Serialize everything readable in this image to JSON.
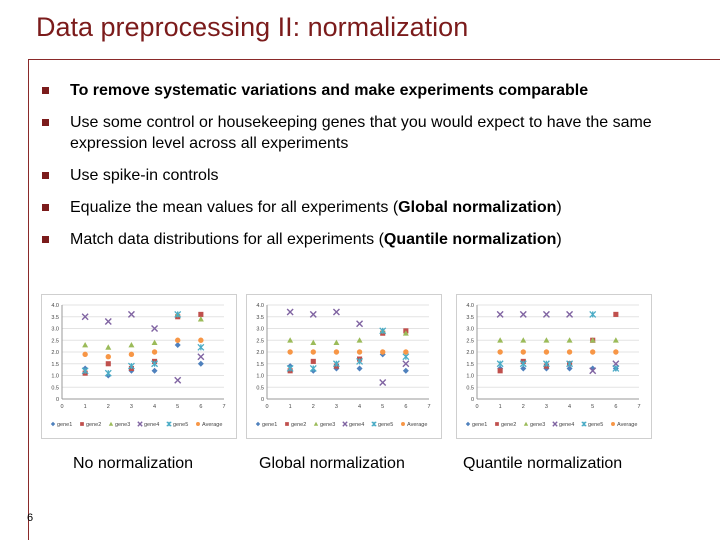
{
  "slide": {
    "title": "Data preprocessing II: normalization",
    "page_number": "6",
    "bullets": [
      {
        "parts": [
          {
            "text": "To remove systematic variations and make experiments comparable",
            "bold": true
          }
        ]
      },
      {
        "parts": [
          {
            "text": "Use some control or housekeeping genes that you would expect to have the same expression level across all experiments",
            "bold": false
          }
        ]
      },
      {
        "parts": [
          {
            "text": "Use spike-in controls",
            "bold": false
          }
        ]
      },
      {
        "parts": [
          {
            "text": "Equalize the mean values for all experiments (",
            "bold": false
          },
          {
            "text": "Global normalization",
            "bold": true
          },
          {
            "text": ")",
            "bold": false
          }
        ]
      },
      {
        "parts": [
          {
            "text": "Match data distributions for all experiments (",
            "bold": false
          },
          {
            "text": "Quantile normalization",
            "bold": true
          },
          {
            "text": ")",
            "bold": false
          }
        ]
      }
    ],
    "captions": [
      "No normalization",
      "Global normalization",
      "Quantile normalization"
    ]
  },
  "colors": {
    "title": "#7b1b1b",
    "gene1": "#4f81bd",
    "gene2": "#c0504d",
    "gene3": "#9bbb59",
    "gene4": "#8064a2",
    "gene5": "#4bacc6",
    "average": "#f79646"
  },
  "chart_data": [
    {
      "type": "scatter",
      "x": [
        1,
        2,
        3,
        4,
        5,
        6
      ],
      "xlim": [
        0,
        7
      ],
      "ylim": [
        0,
        4
      ],
      "xticks": [
        "0",
        "1",
        "2",
        "3",
        "4",
        "5",
        "6",
        "7"
      ],
      "yticks": [
        "0",
        "0.5",
        "1.0",
        "1.5",
        "2.0",
        "2.5",
        "3.0",
        "3.5",
        "4.0"
      ],
      "series": [
        {
          "name": "gene1",
          "marker": "diamond",
          "values": [
            1.3,
            1.0,
            1.2,
            1.2,
            2.3,
            1.5
          ]
        },
        {
          "name": "gene2",
          "marker": "square",
          "values": [
            1.1,
            1.5,
            1.3,
            1.6,
            3.5,
            3.6
          ]
        },
        {
          "name": "gene3",
          "marker": "triangle",
          "values": [
            2.3,
            2.2,
            2.3,
            2.4,
            3.6,
            3.4
          ]
        },
        {
          "name": "gene4",
          "marker": "x",
          "values": [
            3.5,
            3.3,
            3.6,
            3.0,
            0.8,
            1.8
          ]
        },
        {
          "name": "gene5",
          "marker": "star",
          "values": [
            1.2,
            1.1,
            1.4,
            1.5,
            3.6,
            2.2
          ]
        },
        {
          "name": "Average",
          "marker": "circle",
          "values": [
            1.9,
            1.8,
            1.9,
            2.0,
            2.5,
            2.5
          ]
        }
      ]
    },
    {
      "type": "scatter",
      "x": [
        1,
        2,
        3,
        4,
        5,
        6
      ],
      "xlim": [
        0,
        7
      ],
      "ylim": [
        0,
        4
      ],
      "xticks": [
        "0",
        "1",
        "2",
        "3",
        "4",
        "5",
        "6",
        "7"
      ],
      "yticks": [
        "0",
        "0.5",
        "1.0",
        "1.5",
        "2.0",
        "2.5",
        "3.0",
        "3.5",
        "4.0"
      ],
      "series": [
        {
          "name": "gene1",
          "marker": "diamond",
          "values": [
            1.4,
            1.2,
            1.3,
            1.3,
            1.9,
            1.2
          ]
        },
        {
          "name": "gene2",
          "marker": "square",
          "values": [
            1.2,
            1.6,
            1.4,
            1.7,
            2.8,
            2.9
          ]
        },
        {
          "name": "gene3",
          "marker": "triangle",
          "values": [
            2.5,
            2.4,
            2.4,
            2.5,
            2.9,
            2.8
          ]
        },
        {
          "name": "gene4",
          "marker": "x",
          "values": [
            3.7,
            3.6,
            3.7,
            3.2,
            0.7,
            1.5
          ]
        },
        {
          "name": "gene5",
          "marker": "star",
          "values": [
            1.3,
            1.3,
            1.5,
            1.6,
            2.9,
            1.8
          ]
        },
        {
          "name": "Average",
          "marker": "circle",
          "values": [
            2.0,
            2.0,
            2.0,
            2.0,
            2.0,
            2.0
          ]
        }
      ]
    },
    {
      "type": "scatter",
      "x": [
        1,
        2,
        3,
        4,
        5,
        6
      ],
      "xlim": [
        0,
        7
      ],
      "ylim": [
        0,
        4
      ],
      "xticks": [
        "0",
        "1",
        "2",
        "3",
        "4",
        "5",
        "6",
        "7"
      ],
      "yticks": [
        "0",
        "0.5",
        "1.0",
        "1.5",
        "2.0",
        "2.5",
        "3.0",
        "3.5",
        "4.0"
      ],
      "series": [
        {
          "name": "gene1",
          "marker": "diamond",
          "values": [
            1.3,
            1.3,
            1.3,
            1.3,
            1.3,
            1.3
          ]
        },
        {
          "name": "gene2",
          "marker": "square",
          "values": [
            1.2,
            1.6,
            1.4,
            1.5,
            2.5,
            3.6
          ]
        },
        {
          "name": "gene3",
          "marker": "triangle",
          "values": [
            2.5,
            2.5,
            2.5,
            2.5,
            2.5,
            2.5
          ]
        },
        {
          "name": "gene4",
          "marker": "x",
          "values": [
            3.6,
            3.6,
            3.6,
            3.6,
            1.2,
            1.5
          ]
        },
        {
          "name": "gene5",
          "marker": "star",
          "values": [
            1.5,
            1.5,
            1.5,
            1.5,
            3.6,
            1.3
          ]
        },
        {
          "name": "Average",
          "marker": "circle",
          "values": [
            2.0,
            2.0,
            2.0,
            2.0,
            2.0,
            2.0
          ]
        }
      ]
    }
  ]
}
